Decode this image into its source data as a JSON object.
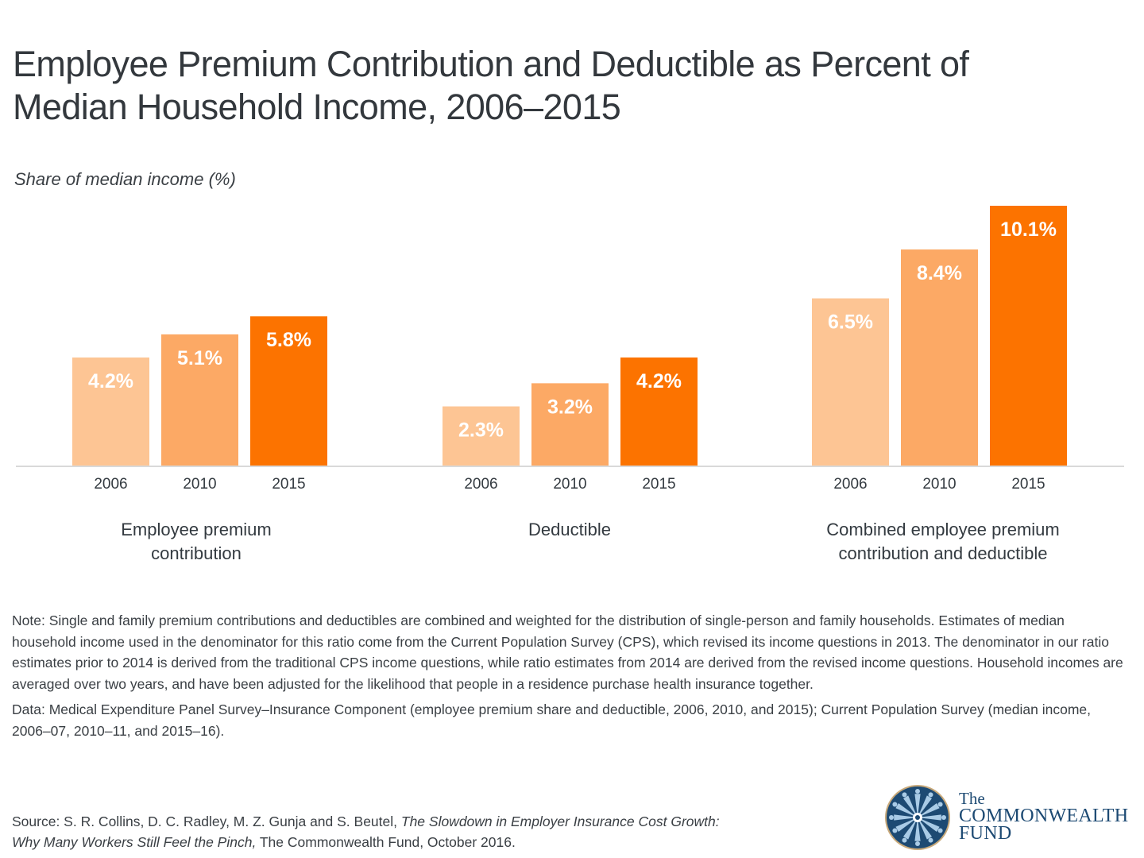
{
  "title_line1": "Employee Premium Contribution and Deductible as Percent of",
  "title_line2": "Median Household Income, 2006–2015",
  "colors": {
    "y2006": "#fdc594",
    "y2010": "#fca965",
    "y2015": "#fc7300",
    "axis": "#d9d9d9",
    "brand_blue": "#1d4a73"
  },
  "chart_data": {
    "type": "bar",
    "title": "Employee Premium Contribution and Deductible as Percent of Median Household Income, 2006–2015",
    "ylabel": "Share of median income (%)",
    "xlabel": "",
    "ylim": [
      0,
      10.1
    ],
    "grid": false,
    "legend": "none",
    "groups": [
      "Employee premium contribution",
      "Deductible",
      "Combined employee premium contribution and deductible"
    ],
    "categories": [
      "2006",
      "2010",
      "2015"
    ],
    "series": [
      {
        "name": "Employee premium contribution",
        "values": [
          4.2,
          5.1,
          5.8
        ],
        "labels": [
          "4.2%",
          "5.1%",
          "5.8%"
        ]
      },
      {
        "name": "Deductible",
        "values": [
          2.3,
          3.2,
          4.2
        ],
        "labels": [
          "2.3%",
          "3.2%",
          "4.2%"
        ]
      },
      {
        "name": "Combined employee premium contribution and deductible",
        "values": [
          6.5,
          8.4,
          10.1
        ],
        "labels": [
          "6.5%",
          "8.4%",
          "10.1%"
        ]
      }
    ]
  },
  "group_labels": [
    [
      "Employee premium",
      "contribution"
    ],
    [
      "Deductible"
    ],
    [
      "Combined employee premium",
      "contribution and deductible"
    ]
  ],
  "note": "Note: Single and family premium contributions and deductibles are combined and weighted for the distribution of single-person and family households. Estimates of median household income used in the denominator for this ratio come from the Current Population Survey (CPS), which revised its income questions in 2013.  The denominator in our ratio estimates prior to 2014 is derived from the traditional CPS income questions, while ratio estimates from 2014 are derived from the revised income questions. Household incomes are averaged over two years, and have been adjusted for the likelihood that people in a residence purchase health insurance together.",
  "data_note": "Data: Medical Expenditure Panel Survey–Insurance Component (employee premium share and deductible, 2006, 2010, and 2015); Current Population Survey (median income, 2006–07, 2010–11, and 2015–16).",
  "source": {
    "prefix": "Source: S. R. Collins, D. C. Radley, M. Z. Gunja and S. Beutel, ",
    "title_italic": "The Slowdown in Employer Insurance Cost Growth: Why Many Workers Still Feel the Pinch,",
    "suffix": " The Commonwealth Fund, October 2016."
  },
  "logo": {
    "line1": "The",
    "line2": "COMMONWEALTH",
    "line3": "FUND",
    "icon": "commonwealth-fund-emblem-icon"
  }
}
